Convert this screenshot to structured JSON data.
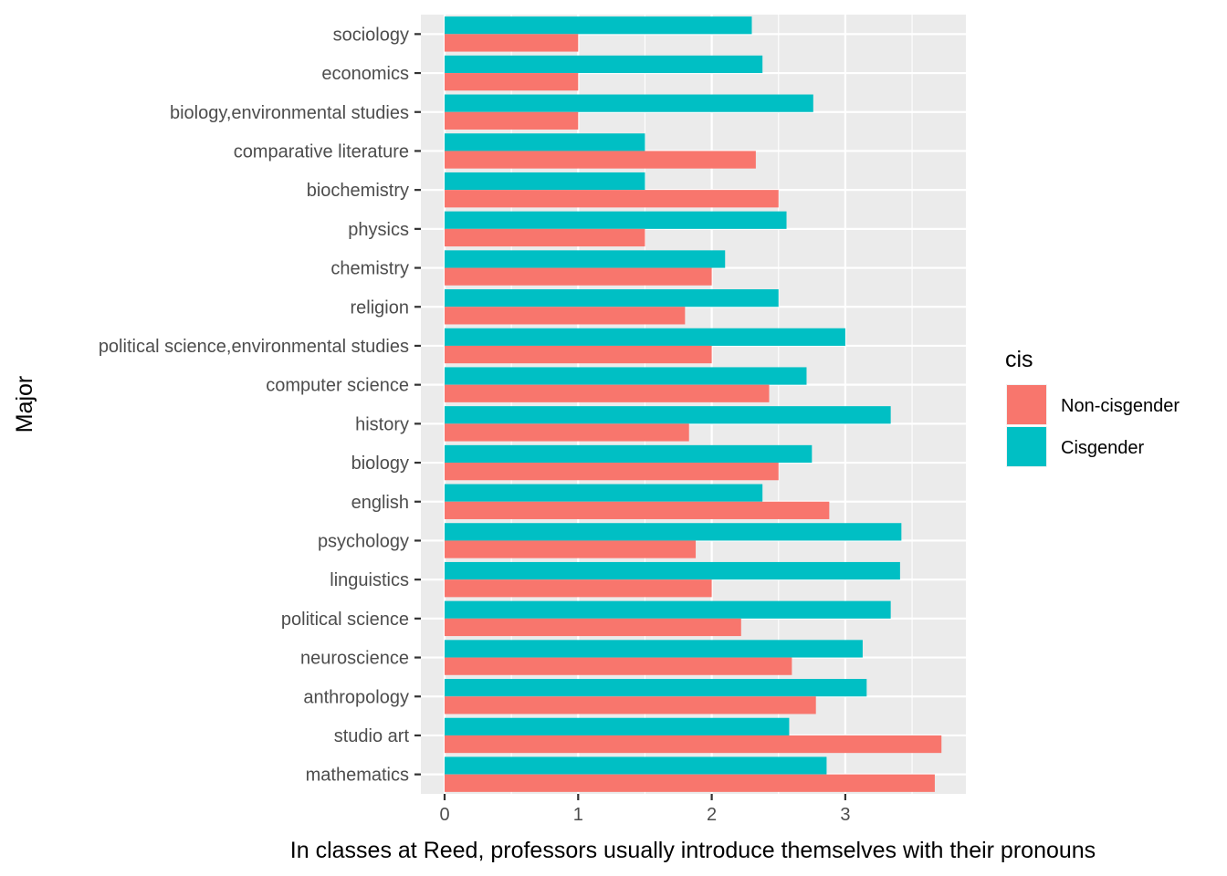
{
  "chart_data": {
    "type": "bar",
    "orientation": "horizontal",
    "title": "",
    "xlabel": "In classes at Reed, professors usually introduce themselves with their pronouns",
    "ylabel": "Major",
    "xlim": [
      0,
      3.9
    ],
    "xticks": [
      0,
      1,
      2,
      3
    ],
    "grid": true,
    "legend_position": "right",
    "legend_title": "cis",
    "categories": [
      "sociology",
      "economics",
      "biology,environmental studies",
      "comparative literature",
      "biochemistry",
      "physics",
      "chemistry",
      "religion",
      "political science,environmental studies",
      "computer science",
      "history",
      "biology",
      "english",
      "psychology",
      "linguistics",
      "political science",
      "neuroscience",
      "anthropology",
      "studio art",
      "mathematics"
    ],
    "series": [
      {
        "name": "Non-cisgender",
        "color": "#F8766D",
        "values": [
          1.0,
          1.0,
          1.0,
          2.33,
          2.5,
          1.5,
          2.0,
          1.8,
          2.0,
          2.43,
          1.83,
          2.5,
          2.88,
          1.88,
          2.0,
          2.22,
          2.6,
          2.78,
          3.72,
          3.67
        ]
      },
      {
        "name": "Cisgender",
        "color": "#00BFC4",
        "values": [
          2.3,
          2.38,
          2.76,
          1.5,
          1.5,
          2.56,
          2.1,
          2.5,
          3.0,
          2.71,
          3.34,
          2.75,
          2.38,
          3.42,
          3.41,
          3.34,
          3.13,
          3.16,
          2.58,
          2.86
        ]
      }
    ]
  }
}
